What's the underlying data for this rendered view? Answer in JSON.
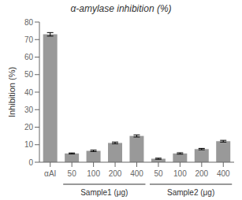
{
  "chart_data": {
    "type": "bar",
    "title": "α-amylase inhibition (%)",
    "ylabel": "Inhibition (%)",
    "categories": [
      "αAI",
      "50",
      "100",
      "200",
      "400",
      "50",
      "100",
      "200",
      "400"
    ],
    "values": [
      73.0,
      5.0,
      6.5,
      11.0,
      15.0,
      2.0,
      5.0,
      7.5,
      12.0
    ],
    "errors": [
      1.0,
      0.3,
      0.4,
      0.5,
      0.6,
      0.3,
      0.4,
      0.4,
      0.5
    ],
    "color": "#999999",
    "ylim": [
      0,
      80
    ],
    "yticks": [
      0,
      10,
      20,
      30,
      40,
      50,
      60,
      70,
      80
    ],
    "grid": false,
    "groups": [
      {
        "label": "Sample1 (μg)",
        "indices": [
          1,
          2,
          3,
          4
        ]
      },
      {
        "label": "Sample2 (μg)",
        "indices": [
          5,
          6,
          7,
          8
        ]
      }
    ]
  }
}
